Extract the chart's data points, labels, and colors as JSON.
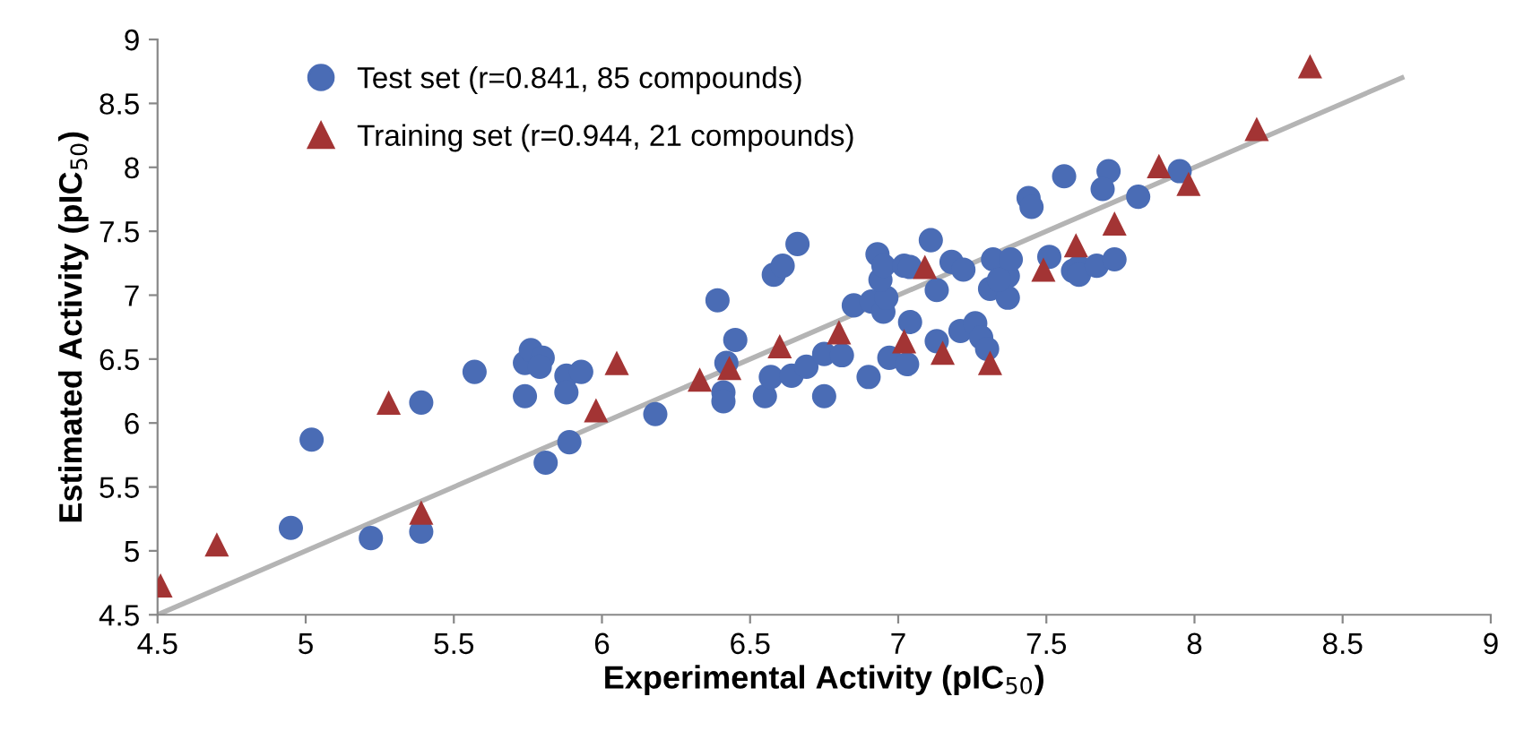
{
  "chart_data": {
    "type": "scatter",
    "xlabel": "Experimental Activity (pIC$_{50}$)",
    "ylabel": "Estimated Activity (pIC$_{50}$)",
    "xlim": [
      4.5,
      9
    ],
    "ylim": [
      4.5,
      9
    ],
    "xticks": [
      4.5,
      5,
      5.5,
      6,
      6.5,
      7,
      7.5,
      8,
      8.5,
      9
    ],
    "yticks": [
      4.5,
      5,
      5.5,
      6,
      6.5,
      7,
      7.5,
      8,
      8.5,
      9
    ],
    "grid": false,
    "legend": "top left",
    "series": [
      {
        "name": "Test set (r=0.841, 85 compounds)",
        "color": "#4a6cb5",
        "marker": "circle",
        "x": [
          4.95,
          5.02,
          5.22,
          5.39,
          5.39,
          5.57,
          5.74,
          5.74,
          5.76,
          5.8,
          5.79,
          5.88,
          5.93,
          5.88,
          5.89,
          5.81,
          6.18,
          6.39,
          6.45,
          6.42,
          6.41,
          6.41,
          6.55,
          6.57,
          6.64,
          6.69,
          6.75,
          6.75,
          6.81,
          6.58,
          6.61,
          6.66,
          6.85,
          6.91,
          6.9,
          6.95,
          6.96,
          6.94,
          6.93,
          6.95,
          6.97,
          7.03,
          7.04,
          7.02,
          7.04,
          7.11,
          7.13,
          7.13,
          7.18,
          7.22,
          7.21,
          7.26,
          7.28,
          7.3,
          7.32,
          7.31,
          7.37,
          7.38,
          7.37,
          7.34,
          7.44,
          7.45,
          7.51,
          7.56,
          7.59,
          7.71,
          7.69,
          7.81,
          7.95,
          7.61,
          7.61,
          7.67,
          7.73
        ],
        "values": [
          5.18,
          5.87,
          5.1,
          6.16,
          5.15,
          6.4,
          6.21,
          6.47,
          6.57,
          6.51,
          6.44,
          6.37,
          6.4,
          6.24,
          5.85,
          5.69,
          6.07,
          6.96,
          6.65,
          6.47,
          6.24,
          6.17,
          6.21,
          6.36,
          6.37,
          6.44,
          6.21,
          6.54,
          6.53,
          7.16,
          7.23,
          7.4,
          6.92,
          6.95,
          6.36,
          6.87,
          6.98,
          7.12,
          7.32,
          7.23,
          6.51,
          6.46,
          6.79,
          7.23,
          7.22,
          7.43,
          7.04,
          6.64,
          7.26,
          7.2,
          6.72,
          6.78,
          6.67,
          6.58,
          7.28,
          7.05,
          7.15,
          7.28,
          6.98,
          7.12,
          7.76,
          7.69,
          7.3,
          7.93,
          7.19,
          7.97,
          7.83,
          7.77,
          7.97,
          7.22,
          7.16,
          7.23,
          7.28
        ]
      },
      {
        "name": "Training set (r=0.944, 21 compounds)",
        "color": "#a33434",
        "marker": "triangle",
        "x": [
          4.51,
          4.7,
          5.28,
          5.39,
          5.98,
          6.05,
          6.33,
          6.43,
          6.6,
          6.8,
          7.02,
          7.09,
          7.15,
          7.31,
          7.49,
          7.6,
          7.73,
          7.88,
          7.98,
          8.21,
          8.39
        ],
        "values": [
          4.73,
          5.05,
          6.16,
          5.3,
          6.1,
          6.47,
          6.34,
          6.43,
          6.6,
          6.71,
          6.64,
          7.22,
          6.55,
          6.47,
          7.2,
          7.39,
          7.56,
          8.01,
          7.87,
          8.3,
          8.79
        ]
      },
      {
        "type": "line",
        "color": "#b4b4b4",
        "marker": "none",
        "line_style": "solid",
        "x": [
          4.5,
          8.7
        ],
        "values": [
          4.5,
          8.7
        ]
      }
    ]
  }
}
